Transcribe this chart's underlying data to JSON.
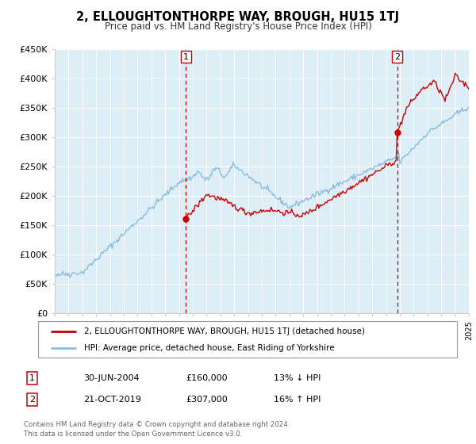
{
  "title": "2, ELLOUGHTONTHORPE WAY, BROUGH, HU15 1TJ",
  "subtitle": "Price paid vs. HM Land Registry's House Price Index (HPI)",
  "ylim": [
    0,
    450000
  ],
  "yticks": [
    0,
    50000,
    100000,
    150000,
    200000,
    250000,
    300000,
    350000,
    400000,
    450000
  ],
  "ytick_labels": [
    "£0",
    "£50K",
    "£100K",
    "£150K",
    "£200K",
    "£250K",
    "£300K",
    "£350K",
    "£400K",
    "£450K"
  ],
  "background_color": "#ffffff",
  "plot_bg_color": "#ddeef6",
  "grid_color": "#ffffff",
  "red_color": "#cc0000",
  "blue_color": "#88bbdd",
  "sale1_date_num": 2004.5,
  "sale1_price": 160000,
  "sale1_label": "1",
  "sale1_date_str": "30-JUN-2004",
  "sale1_price_str": "£160,000",
  "sale1_hpi_str": "13% ↓ HPI",
  "sale2_date_num": 2019.8,
  "sale2_price": 307000,
  "sale2_label": "2",
  "sale2_date_str": "21-OCT-2019",
  "sale2_price_str": "£307,000",
  "sale2_hpi_str": "16% ↑ HPI",
  "legend_line1": "2, ELLOUGHTONTHORPE WAY, BROUGH, HU15 1TJ (detached house)",
  "legend_line2": "HPI: Average price, detached house, East Riding of Yorkshire",
  "footer_line1": "Contains HM Land Registry data © Crown copyright and database right 2024.",
  "footer_line2": "This data is licensed under the Open Government Licence v3.0.",
  "xmin": 1995,
  "xmax": 2025
}
